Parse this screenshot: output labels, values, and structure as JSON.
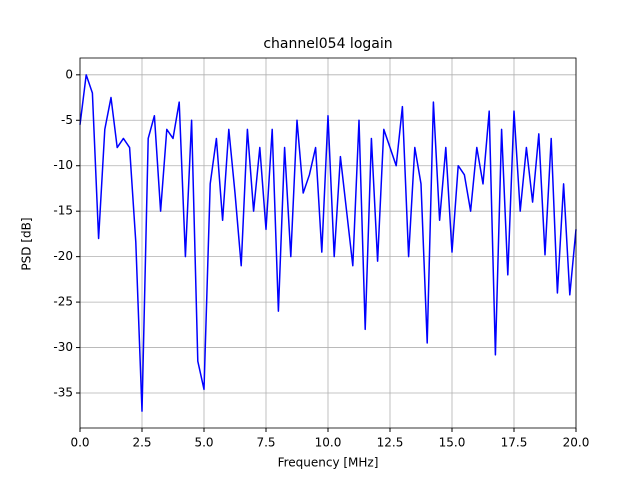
{
  "chart_data": {
    "type": "line",
    "title": "channel054 logain",
    "xlabel": "Frequency [MHz]",
    "ylabel": "PSD [dB]",
    "x": [
      0,
      0.25,
      0.5,
      0.75,
      1,
      1.25,
      1.5,
      1.75,
      2,
      2.25,
      2.5,
      2.75,
      3,
      3.25,
      3.5,
      3.75,
      4,
      4.25,
      4.5,
      4.75,
      5,
      5.25,
      5.5,
      5.75,
      6,
      6.25,
      6.5,
      6.75,
      7,
      7.25,
      7.5,
      7.75,
      8,
      8.25,
      8.5,
      8.75,
      9,
      9.25,
      9.5,
      9.75,
      10,
      10.25,
      10.5,
      10.75,
      11,
      11.25,
      11.5,
      11.75,
      12,
      12.25,
      12.5,
      12.75,
      13,
      13.25,
      13.5,
      13.75,
      14,
      14.25,
      14.5,
      14.75,
      15,
      15.25,
      15.5,
      15.75,
      16,
      16.25,
      16.5,
      16.75,
      17,
      17.25,
      17.5,
      17.75,
      18,
      18.25,
      18.5,
      18.75,
      19,
      19.25,
      19.5,
      19.75,
      20
    ],
    "series": [
      {
        "name": "PSD",
        "color": "#0000ff",
        "values": [
          -5.5,
          0,
          -2,
          -18,
          -6,
          -2.5,
          -8,
          -7,
          -8,
          -18.4,
          -37,
          -7,
          -4.5,
          -15,
          -6,
          -7,
          -3,
          -20,
          -5,
          -31.5,
          -34.6,
          -12,
          -7,
          -16,
          -6,
          -13,
          -21,
          -6,
          -15,
          -8,
          -17,
          -6,
          -26,
          -8,
          -20,
          -5,
          -13,
          -11,
          -8,
          -19.5,
          -4.5,
          -20,
          -9,
          -15,
          -21,
          -5,
          -28,
          -7,
          -20.5,
          -6,
          -8,
          -10,
          -3.5,
          -20,
          -8,
          -12,
          -29.5,
          -3,
          -16,
          -8,
          -19.5,
          -10,
          -11,
          -15,
          -8,
          -12,
          -4,
          -30.8,
          -6,
          -22,
          -4,
          -15,
          -8,
          -14,
          -6.5,
          -19.8,
          -7,
          -24,
          -12,
          -24.2,
          -17
        ]
      }
    ],
    "xlim": [
      0,
      20
    ],
    "ylim": [
      -38.85,
      1.85
    ],
    "xticks": [
      {
        "value": 0,
        "label": "0.0"
      },
      2.5,
      {
        "value": 5,
        "label": "5.0"
      },
      7.5,
      {
        "value": 10,
        "label": "10.0"
      },
      12.5,
      {
        "value": 15,
        "label": "15.0"
      },
      17.5,
      {
        "value": 20,
        "label": "20.0"
      }
    ],
    "yticks": [
      0,
      -5,
      -10,
      -15,
      -20,
      -25,
      -30,
      -35
    ],
    "grid": true
  }
}
